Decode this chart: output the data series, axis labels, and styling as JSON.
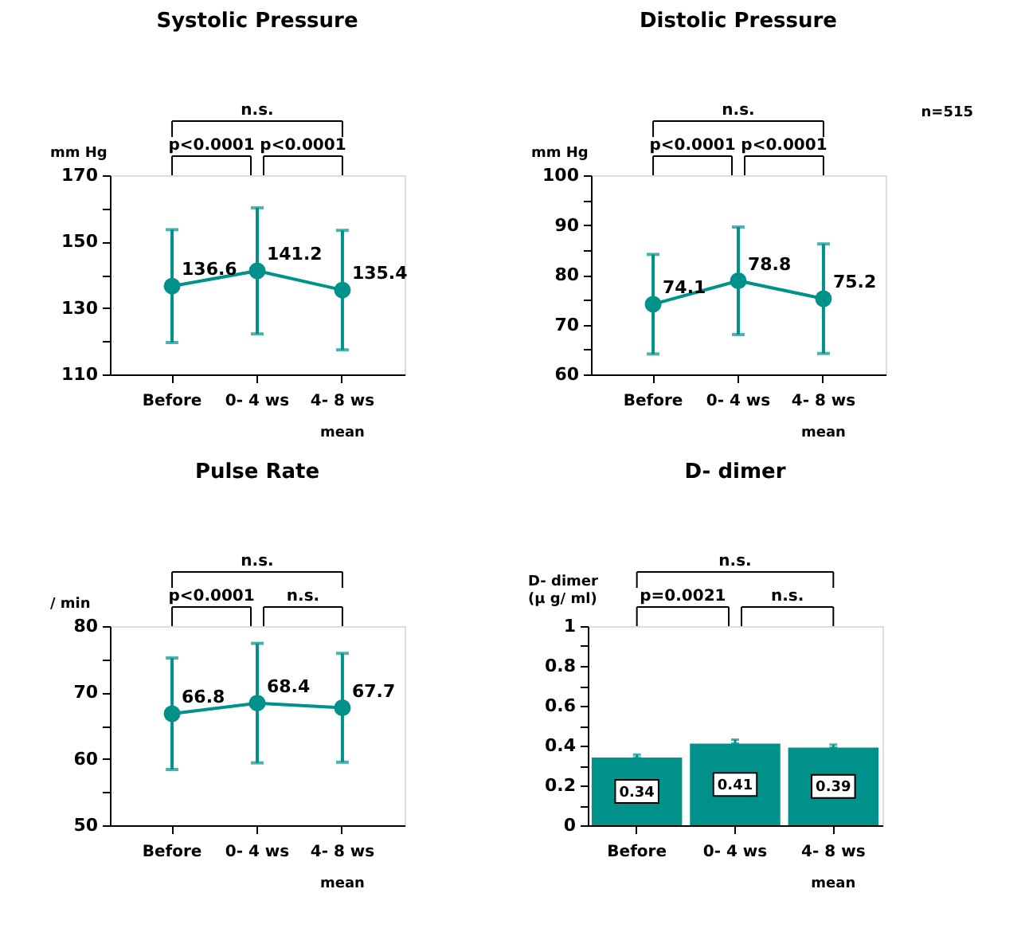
{
  "chart_data": [
    {
      "type": "line",
      "title": "Systolic Pressure",
      "ylabel": "mm Hg",
      "categories": [
        "Before",
        "0- 4 ws",
        "4- 8 ws"
      ],
      "color": "#00918a",
      "marker": "circle",
      "values": [
        136.6,
        141.2,
        135.4
      ],
      "errors": [
        17,
        19,
        18
      ],
      "data_labels": true,
      "ylim": [
        110,
        170
      ],
      "yticks": [
        110,
        {
          "value": 120,
          "label": null
        },
        130,
        {
          "value": 140,
          "label": null
        },
        150,
        {
          "value": 160,
          "label": null
        },
        170
      ],
      "annotations": [
        "n.s.",
        "p<0.0001",
        "p<0.0001",
        "mean"
      ]
    },
    {
      "type": "line",
      "title": "Distolic Pressure",
      "ylabel": "mm Hg",
      "categories": [
        "Before",
        "0- 4 ws",
        "4- 8 ws"
      ],
      "color": "#00918a",
      "marker": "circle",
      "values": [
        74.1,
        78.8,
        75.2
      ],
      "errors": [
        10,
        10.8,
        11
      ],
      "data_labels": true,
      "ylim": [
        60,
        100
      ],
      "yticks": [
        60,
        {
          "value": 65,
          "label": null
        },
        70,
        {
          "value": 75,
          "label": null
        },
        80,
        {
          "value": 85,
          "label": null
        },
        90,
        {
          "value": 95,
          "label": null
        },
        100
      ],
      "annotations": [
        "n.s.",
        "p<0.0001",
        "p<0.0001",
        "n=515",
        "mean"
      ]
    },
    {
      "type": "line",
      "title": "Pulse Rate",
      "ylabel": "/ min",
      "categories": [
        "Before",
        "0- 4 ws",
        "4- 8 ws"
      ],
      "color": "#00918a",
      "marker": "circle",
      "values": [
        66.8,
        68.4,
        67.7
      ],
      "errors": [
        8.4,
        9,
        8.2
      ],
      "data_labels": true,
      "ylim": [
        50,
        80
      ],
      "yticks": [
        50,
        {
          "value": 55,
          "label": null
        },
        60,
        {
          "value": 65,
          "label": null
        },
        70,
        {
          "value": 75,
          "label": null
        },
        80
      ],
      "annotations": [
        "n.s.",
        "p<0.0001",
        "n.s.",
        "mean"
      ]
    },
    {
      "type": "bar",
      "title": "D- dimer",
      "ylabel": "D- dimer\n(μ g/ ml)",
      "categories": [
        "Before",
        "0- 4 ws",
        "4- 8 ws"
      ],
      "color": "#00918a",
      "values": [
        0.34,
        0.41,
        0.39
      ],
      "errors": [
        [
          0.34,
          0.355
        ],
        [
          0.41,
          0.43
        ],
        [
          0.39,
          0.405
        ]
      ],
      "data_labels": true,
      "ylim": [
        0,
        1
      ],
      "yticks": [
        0,
        {
          "value": 0.1,
          "label": null
        },
        0.2,
        {
          "value": 0.3,
          "label": null
        },
        0.4,
        {
          "value": 0.5,
          "label": null
        },
        0.6,
        {
          "value": 0.7,
          "label": null
        },
        0.8,
        {
          "value": 0.9,
          "label": null
        },
        1
      ],
      "annotations": [
        "n.s.",
        "p=0.0021",
        "n.s.",
        "mean"
      ]
    }
  ]
}
